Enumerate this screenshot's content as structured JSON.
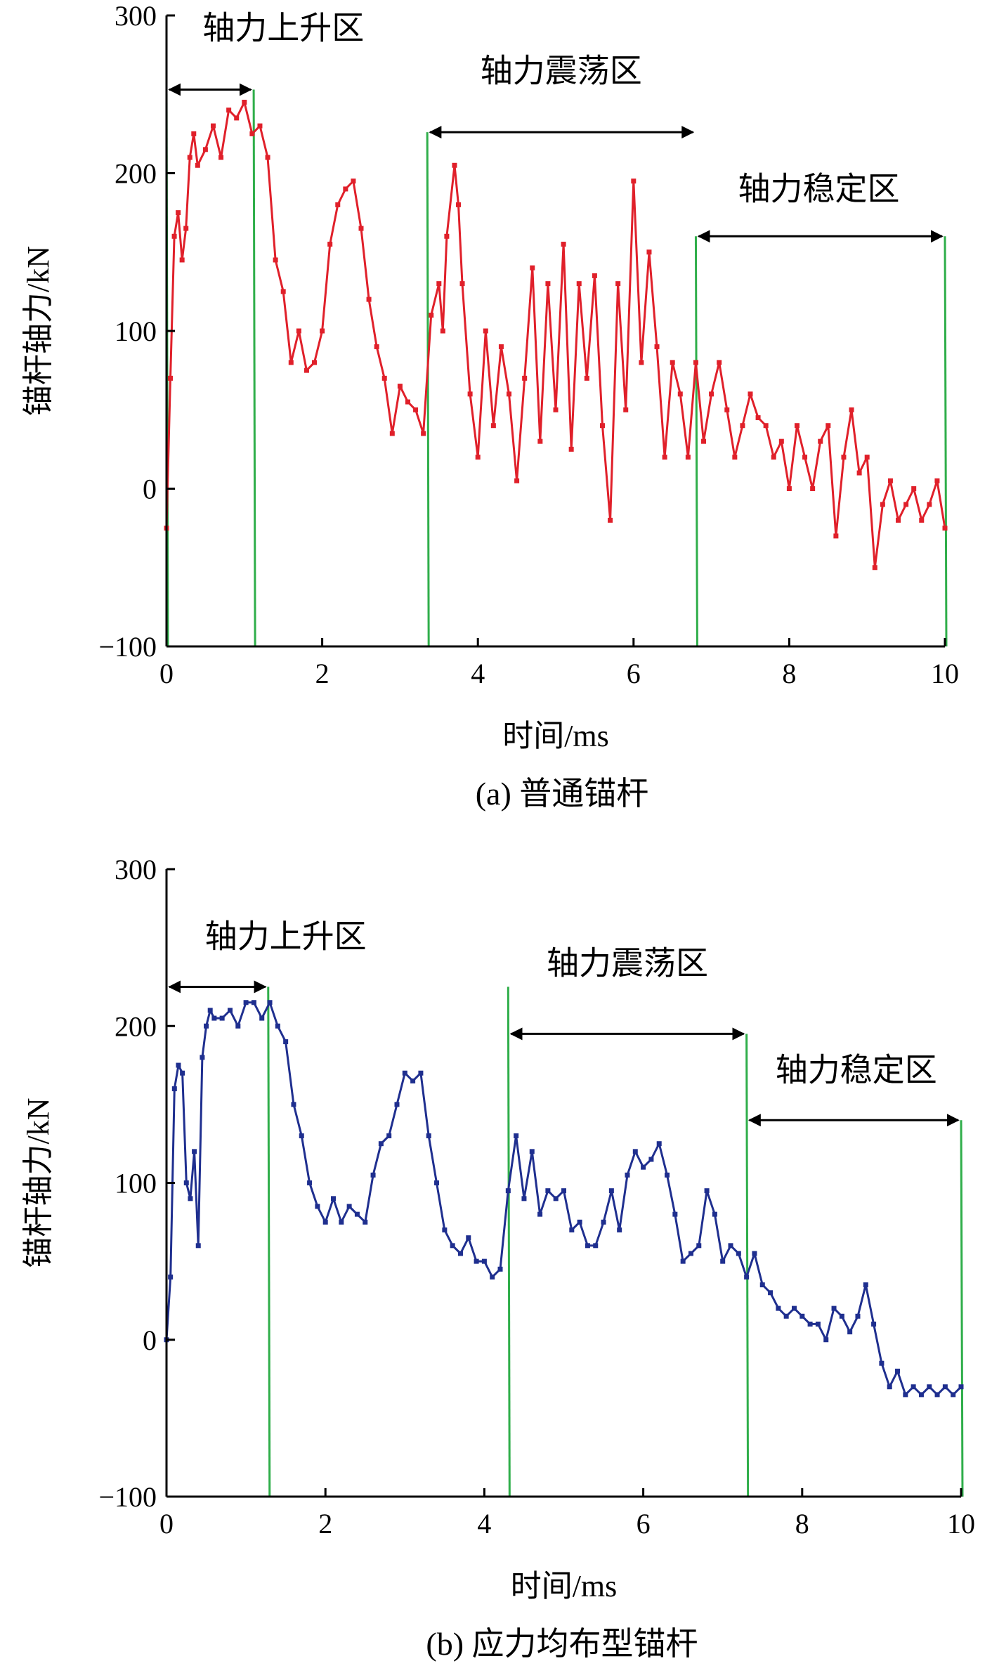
{
  "chart_data": [
    {
      "type": "line",
      "caption": "(a) 普通锚杆",
      "xlabel": "时间/ms",
      "ylabel": "锚杆轴力/kN",
      "xlim": [
        0,
        10
      ],
      "ylim": [
        -100,
        300
      ],
      "xticks": [
        "0",
        "2",
        "4",
        "6",
        "8",
        "10"
      ],
      "yticks": [
        "−100",
        "0",
        "100",
        "200",
        "300"
      ],
      "line_color": "#e0202a",
      "marker_color": "#e0202a",
      "boundary_color": "#2fae4a",
      "boundaries": [
        0,
        1.12,
        3.35,
        6.8,
        10
      ],
      "zones": [
        {
          "label": "轴力上升区",
          "x0": 0,
          "x1": 1.12,
          "arrow_y": 253,
          "label_y": 285,
          "label_x": 1.5
        },
        {
          "label": "轴力震荡区",
          "x0": 3.35,
          "x1": 6.8,
          "arrow_y": 226,
          "label_y": 258,
          "label_x": 5.07
        },
        {
          "label": "轴力稳定区",
          "x0": 6.8,
          "x1": 10,
          "arrow_y": 160,
          "label_y": 183,
          "label_x": 8.38
        }
      ],
      "series": [
        {
          "x": [
            0,
            0.05,
            0.1,
            0.15,
            0.2,
            0.25,
            0.3,
            0.35,
            0.4,
            0.5,
            0.6,
            0.7,
            0.8,
            0.9,
            1.0,
            1.1,
            1.2,
            1.3,
            1.4,
            1.5,
            1.6,
            1.7,
            1.8,
            1.9,
            2.0,
            2.1,
            2.2,
            2.3,
            2.4,
            2.5,
            2.6,
            2.7,
            2.8,
            2.9,
            3.0,
            3.1,
            3.2,
            3.3,
            3.4,
            3.5,
            3.55,
            3.6,
            3.7,
            3.75,
            3.8,
            3.9,
            4.0,
            4.1,
            4.2,
            4.3,
            4.4,
            4.5,
            4.6,
            4.7,
            4.8,
            4.9,
            5.0,
            5.1,
            5.2,
            5.3,
            5.4,
            5.5,
            5.6,
            5.7,
            5.8,
            5.9,
            6.0,
            6.1,
            6.2,
            6.3,
            6.4,
            6.5,
            6.6,
            6.7,
            6.8,
            6.9,
            7.0,
            7.1,
            7.2,
            7.3,
            7.4,
            7.5,
            7.6,
            7.7,
            7.8,
            7.9,
            8.0,
            8.1,
            8.2,
            8.3,
            8.4,
            8.5,
            8.6,
            8.7,
            8.8,
            8.9,
            9.0,
            9.1,
            9.2,
            9.3,
            9.4,
            9.5,
            9.6,
            9.7,
            9.8,
            9.9,
            10.0
          ],
          "y": [
            -25,
            70,
            160,
            175,
            145,
            165,
            210,
            225,
            205,
            215,
            230,
            210,
            240,
            235,
            245,
            225,
            230,
            210,
            145,
            125,
            80,
            100,
            75,
            80,
            100,
            155,
            180,
            190,
            195,
            165,
            120,
            90,
            70,
            35,
            65,
            55,
            50,
            35,
            110,
            130,
            100,
            160,
            205,
            180,
            130,
            60,
            20,
            100,
            40,
            90,
            60,
            5,
            70,
            140,
            30,
            130,
            50,
            155,
            25,
            130,
            70,
            135,
            40,
            -20,
            130,
            50,
            195,
            80,
            150,
            90,
            20,
            80,
            60,
            20,
            80,
            30,
            60,
            80,
            50,
            20,
            40,
            60,
            45,
            40,
            20,
            30,
            0,
            40,
            20,
            0,
            30,
            40,
            -30,
            20,
            50,
            10,
            20,
            -50,
            -10,
            5,
            -20,
            -10,
            0,
            -20,
            -10,
            5,
            -25
          ]
        }
      ]
    },
    {
      "type": "line",
      "caption": "(b) 应力均布型锚杆",
      "xlabel": "时间/ms",
      "ylabel": "锚杆轴力/kN",
      "xlim": [
        0,
        10
      ],
      "ylim": [
        -100,
        300
      ],
      "xticks": [
        "0",
        "2",
        "4",
        "6",
        "8",
        "10"
      ],
      "yticks": [
        "−100",
        "0",
        "100",
        "200",
        "300"
      ],
      "line_color": "#1f2f8f",
      "marker_color": "#1f2f8f",
      "boundary_color": "#2fae4a",
      "boundaries": [
        1.28,
        4.3,
        7.3,
        10
      ],
      "zones": [
        {
          "label": "轴力上升区",
          "x0": 0,
          "x1": 1.28,
          "arrow_y": 225,
          "label_y": 250,
          "label_x": 1.5
        },
        {
          "label": "轴力震荡区",
          "x0": 4.3,
          "x1": 7.3,
          "arrow_y": 195,
          "label_y": 233,
          "label_x": 5.8
        },
        {
          "label": "轴力稳定区",
          "x0": 7.3,
          "x1": 10,
          "arrow_y": 140,
          "label_y": 165,
          "label_x": 8.68
        }
      ],
      "series": [
        {
          "x": [
            0,
            0.05,
            0.1,
            0.15,
            0.2,
            0.25,
            0.3,
            0.35,
            0.4,
            0.45,
            0.5,
            0.55,
            0.6,
            0.7,
            0.8,
            0.9,
            1.0,
            1.1,
            1.2,
            1.3,
            1.4,
            1.5,
            1.6,
            1.7,
            1.8,
            1.9,
            2.0,
            2.1,
            2.2,
            2.3,
            2.4,
            2.5,
            2.6,
            2.7,
            2.8,
            2.9,
            3.0,
            3.1,
            3.2,
            3.3,
            3.4,
            3.5,
            3.6,
            3.7,
            3.8,
            3.9,
            4.0,
            4.1,
            4.2,
            4.3,
            4.4,
            4.5,
            4.6,
            4.7,
            4.8,
            4.9,
            5.0,
            5.1,
            5.2,
            5.3,
            5.4,
            5.5,
            5.6,
            5.7,
            5.8,
            5.9,
            6.0,
            6.1,
            6.2,
            6.3,
            6.4,
            6.5,
            6.6,
            6.7,
            6.8,
            6.9,
            7.0,
            7.1,
            7.2,
            7.3,
            7.4,
            7.5,
            7.6,
            7.7,
            7.8,
            7.9,
            8.0,
            8.1,
            8.2,
            8.3,
            8.4,
            8.5,
            8.6,
            8.7,
            8.8,
            8.9,
            9.0,
            9.1,
            9.2,
            9.3,
            9.4,
            9.5,
            9.6,
            9.7,
            9.8,
            9.9,
            10.0
          ],
          "y": [
            0,
            40,
            160,
            175,
            170,
            100,
            90,
            120,
            60,
            180,
            200,
            210,
            205,
            205,
            210,
            200,
            215,
            215,
            205,
            215,
            200,
            190,
            150,
            130,
            100,
            85,
            75,
            90,
            75,
            85,
            80,
            75,
            105,
            125,
            130,
            150,
            170,
            165,
            170,
            130,
            100,
            70,
            60,
            55,
            65,
            50,
            50,
            40,
            45,
            95,
            130,
            90,
            120,
            80,
            95,
            90,
            95,
            70,
            75,
            60,
            60,
            75,
            95,
            70,
            105,
            120,
            110,
            115,
            125,
            105,
            80,
            50,
            55,
            60,
            95,
            80,
            50,
            60,
            55,
            40,
            55,
            35,
            30,
            20,
            15,
            20,
            15,
            10,
            10,
            0,
            20,
            15,
            5,
            15,
            35,
            10,
            -15,
            -30,
            -20,
            -35,
            -30,
            -35,
            -30,
            -35,
            -30,
            -35,
            -30
          ]
        }
      ]
    }
  ]
}
